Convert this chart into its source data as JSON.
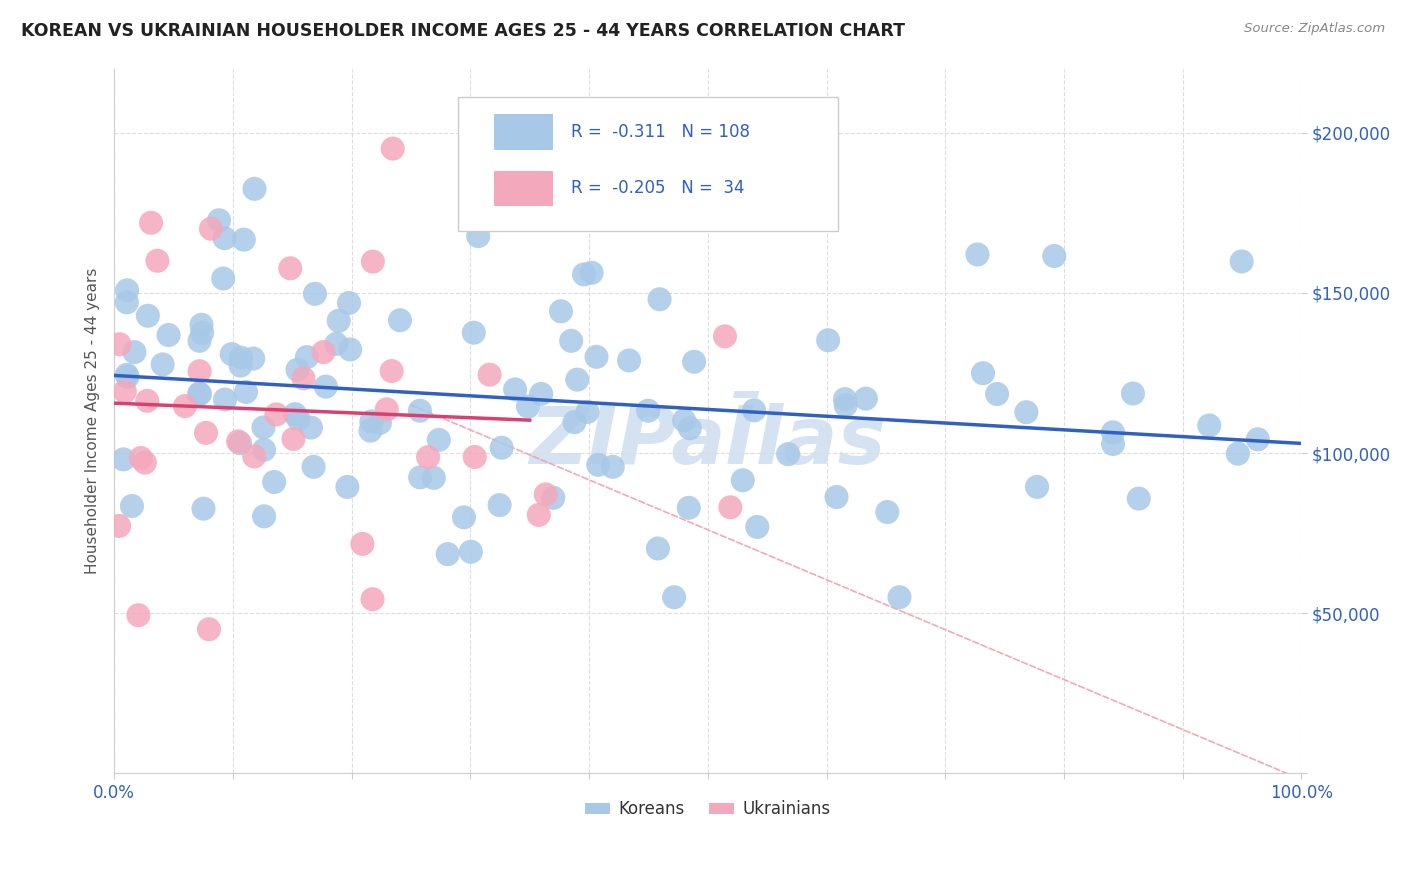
{
  "title": "KOREAN VS UKRAINIAN HOUSEHOLDER INCOME AGES 25 - 44 YEARS CORRELATION CHART",
  "source": "Source: ZipAtlas.com",
  "ylabel": "Householder Income Ages 25 - 44 years",
  "xlim": [
    0.0,
    1.0
  ],
  "ylim": [
    0,
    220000
  ],
  "korean_color": "#a8c8e8",
  "ukrainian_color": "#f4a8bc",
  "korean_line_color": "#3060c0",
  "ukrainian_line_color": "#d84070",
  "diagonal_line_color": "#f0a0b0",
  "legend_text_color": "#3060c0",
  "watermark_color": "#b8d0e8",
  "korean_R": -0.311,
  "korean_N": 108,
  "ukrainian_R": -0.205,
  "ukrainian_N": 34,
  "figsize": [
    14.06,
    8.92
  ],
  "dpi": 100
}
